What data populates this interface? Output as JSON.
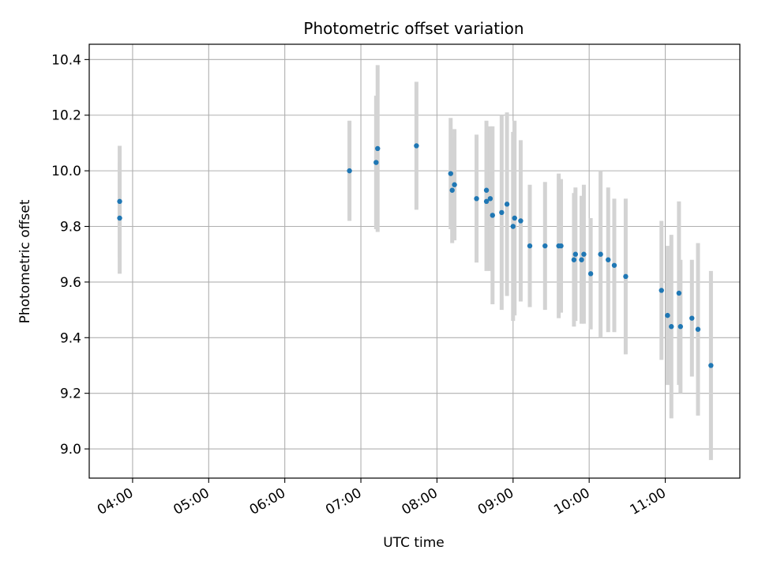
{
  "chart_data": {
    "type": "scatter",
    "title": "Photometric offset variation",
    "xlabel": "UTC time",
    "ylabel": "Photometric offset",
    "x_unit": "hours UTC",
    "xlim": [
      3.43,
      11.98
    ],
    "ylim": [
      8.895,
      10.455
    ],
    "grid": true,
    "colors": {
      "point": "#1f77b4",
      "errorbar": "#d3d3d3",
      "grid": "#b0b0b0"
    },
    "x_ticks": [
      {
        "value": 4,
        "label": "04:00"
      },
      {
        "value": 5,
        "label": "05:00"
      },
      {
        "value": 6,
        "label": "06:00"
      },
      {
        "value": 7,
        "label": "07:00"
      },
      {
        "value": 8,
        "label": "08:00"
      },
      {
        "value": 9,
        "label": "09:00"
      },
      {
        "value": 10,
        "label": "10:00"
      },
      {
        "value": 11,
        "label": "11:00"
      }
    ],
    "y_ticks": [
      {
        "value": 9.0,
        "label": "9.0"
      },
      {
        "value": 9.2,
        "label": "9.2"
      },
      {
        "value": 9.4,
        "label": "9.4"
      },
      {
        "value": 9.6,
        "label": "9.6"
      },
      {
        "value": 9.8,
        "label": "9.8"
      },
      {
        "value": 10.0,
        "label": "10.0"
      },
      {
        "value": 10.2,
        "label": "10.2"
      },
      {
        "value": 10.4,
        "label": "10.4"
      }
    ],
    "points": [
      {
        "x": 3.83,
        "y": 9.89,
        "err": 0.2
      },
      {
        "x": 3.83,
        "y": 9.83,
        "err": 0.2
      },
      {
        "x": 6.85,
        "y": 10.0,
        "err": 0.18
      },
      {
        "x": 7.2,
        "y": 10.03,
        "err": 0.24
      },
      {
        "x": 7.22,
        "y": 10.08,
        "err": 0.3
      },
      {
        "x": 7.73,
        "y": 10.09,
        "err": 0.23
      },
      {
        "x": 8.18,
        "y": 9.99,
        "err": 0.2
      },
      {
        "x": 8.2,
        "y": 9.93,
        "err": 0.19
      },
      {
        "x": 8.23,
        "y": 9.95,
        "err": 0.2
      },
      {
        "x": 8.52,
        "y": 9.9,
        "err": 0.23
      },
      {
        "x": 8.65,
        "y": 9.89,
        "err": 0.25
      },
      {
        "x": 8.65,
        "y": 9.93,
        "err": 0.25
      },
      {
        "x": 8.7,
        "y": 9.9,
        "err": 0.26
      },
      {
        "x": 8.73,
        "y": 9.84,
        "err": 0.32
      },
      {
        "x": 8.85,
        "y": 9.85,
        "err": 0.35
      },
      {
        "x": 8.92,
        "y": 9.88,
        "err": 0.33
      },
      {
        "x": 9.0,
        "y": 9.8,
        "err": 0.34
      },
      {
        "x": 9.02,
        "y": 9.83,
        "err": 0.35
      },
      {
        "x": 9.1,
        "y": 9.82,
        "err": 0.29
      },
      {
        "x": 9.22,
        "y": 9.73,
        "err": 0.22
      },
      {
        "x": 9.42,
        "y": 9.73,
        "err": 0.23
      },
      {
        "x": 9.6,
        "y": 9.73,
        "err": 0.26
      },
      {
        "x": 9.63,
        "y": 9.73,
        "err": 0.24
      },
      {
        "x": 9.8,
        "y": 9.68,
        "err": 0.24
      },
      {
        "x": 9.82,
        "y": 9.7,
        "err": 0.24
      },
      {
        "x": 9.9,
        "y": 9.68,
        "err": 0.23
      },
      {
        "x": 9.93,
        "y": 9.7,
        "err": 0.25
      },
      {
        "x": 10.02,
        "y": 9.63,
        "err": 0.2
      },
      {
        "x": 10.15,
        "y": 9.7,
        "err": 0.3
      },
      {
        "x": 10.25,
        "y": 9.68,
        "err": 0.26
      },
      {
        "x": 10.33,
        "y": 9.66,
        "err": 0.24
      },
      {
        "x": 10.48,
        "y": 9.62,
        "err": 0.28
      },
      {
        "x": 10.95,
        "y": 9.57,
        "err": 0.25
      },
      {
        "x": 11.03,
        "y": 9.48,
        "err": 0.25
      },
      {
        "x": 11.08,
        "y": 9.44,
        "err": 0.33
      },
      {
        "x": 11.18,
        "y": 9.56,
        "err": 0.33
      },
      {
        "x": 11.2,
        "y": 9.44,
        "err": 0.24
      },
      {
        "x": 11.35,
        "y": 9.47,
        "err": 0.21
      },
      {
        "x": 11.43,
        "y": 9.43,
        "err": 0.31
      },
      {
        "x": 11.6,
        "y": 9.3,
        "err": 0.34
      }
    ]
  }
}
